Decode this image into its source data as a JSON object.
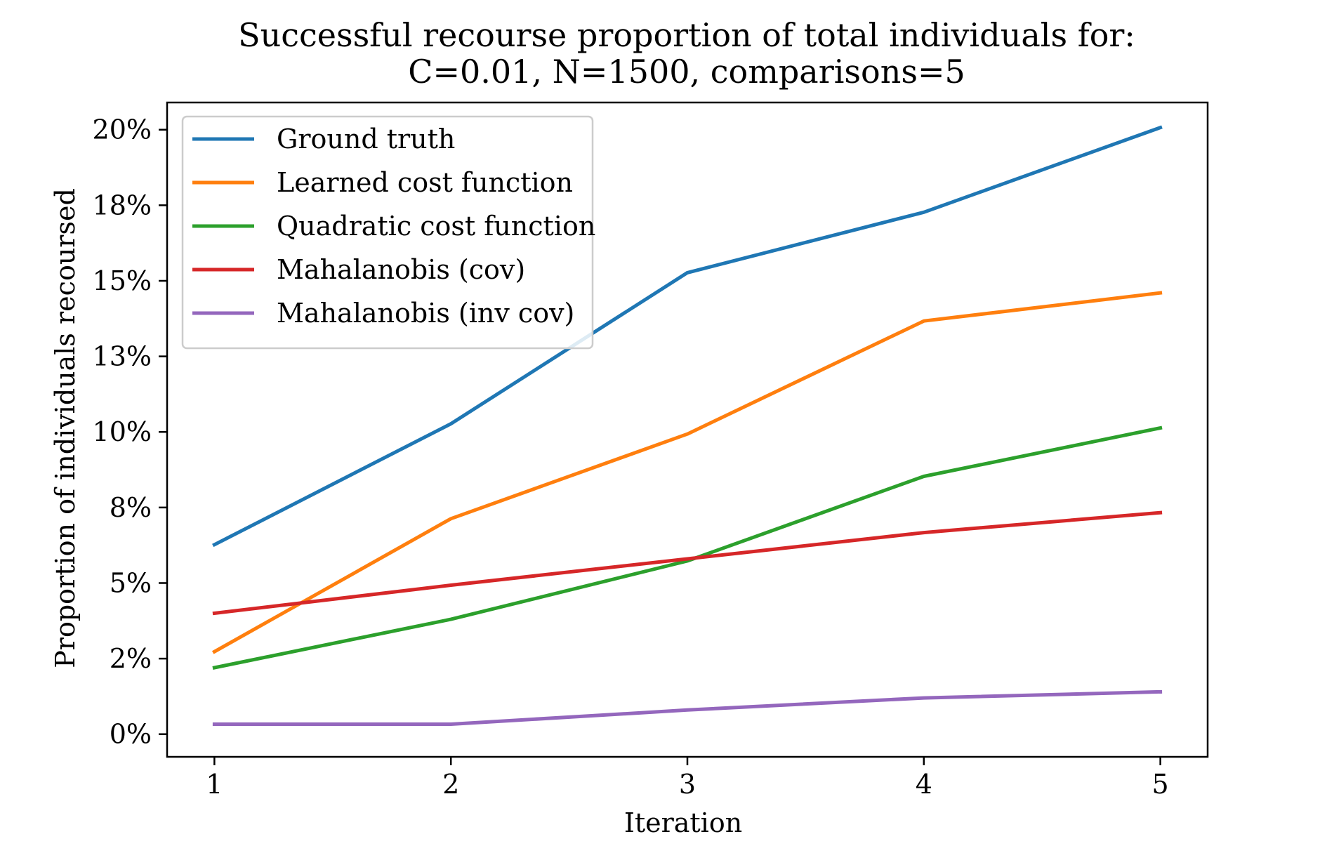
{
  "chart_data": {
    "type": "line",
    "title_line1": "Successful recourse proportion of total individuals for:",
    "title_line2": "C=0.01, N=1500, comparisons=5",
    "xlabel": "Iteration",
    "ylabel": "Proportion of individuals recoursed",
    "x": [
      1,
      2,
      3,
      4,
      5
    ],
    "x_tick_labels": [
      "1",
      "2",
      "3",
      "4",
      "5"
    ],
    "xlim": [
      0.8,
      5.2
    ],
    "ylim": [
      -0.0075,
      0.209
    ],
    "y_ticks": [
      0,
      0.025,
      0.05,
      0.075,
      0.1,
      0.125,
      0.15,
      0.175,
      0.2
    ],
    "y_tick_labels": [
      "0%",
      "2%",
      "5%",
      "8%",
      "10%",
      "13%",
      "15%",
      "18%",
      "20%"
    ],
    "legend_position": "top-left",
    "grid": false,
    "series": [
      {
        "name": "Ground truth",
        "color": "#1f77b4",
        "values": [
          0.0627,
          0.1027,
          0.1527,
          0.1727,
          0.2007
        ]
      },
      {
        "name": "Learned cost function",
        "color": "#ff7f0e",
        "values": [
          0.0273,
          0.0713,
          0.0993,
          0.1367,
          0.146
        ]
      },
      {
        "name": "Quadratic cost function",
        "color": "#2ca02c",
        "values": [
          0.022,
          0.038,
          0.0573,
          0.0853,
          0.1013
        ]
      },
      {
        "name": "Mahalanobis (cov)",
        "color": "#d62728",
        "values": [
          0.04,
          0.0493,
          0.058,
          0.0667,
          0.0733
        ]
      },
      {
        "name": "Mahalanobis (inv cov)",
        "color": "#9467bd",
        "values": [
          0.0033,
          0.0033,
          0.008,
          0.012,
          0.014
        ]
      }
    ]
  }
}
